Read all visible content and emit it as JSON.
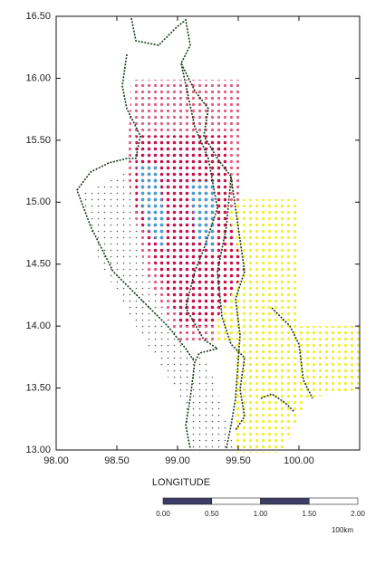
{
  "chart_data": {
    "type": "map",
    "xlabel": "LONGITUDE",
    "xlim": [
      98,
      100.5
    ],
    "ylim": [
      13,
      16.5
    ],
    "xticks": [
      {
        "value": 98,
        "label": "98.00"
      },
      {
        "value": 98.5,
        "label": "98.50"
      },
      {
        "value": 99,
        "label": "99.00"
      },
      {
        "value": 99.5,
        "label": "99.50"
      },
      {
        "value": 100,
        "label": "100.00"
      }
    ],
    "yticks": [
      {
        "value": 13,
        "label": "13.00"
      },
      {
        "value": 13.5,
        "label": "13.50"
      },
      {
        "value": 14,
        "label": "14.00"
      },
      {
        "value": 14.5,
        "label": "14.50"
      },
      {
        "value": 15,
        "label": "15.00"
      },
      {
        "value": 15.5,
        "label": "15.50"
      },
      {
        "value": 16,
        "label": "16.00"
      },
      {
        "value": 16.5,
        "label": "16.50"
      }
    ]
  },
  "scale_bar": {
    "lim": [
      0,
      2
    ],
    "ticks": [
      {
        "value": 0,
        "label": "0.00"
      },
      {
        "value": 0.5,
        "label": "0.50"
      },
      {
        "value": 1,
        "label": "1.00"
      },
      {
        "value": 1.5,
        "label": "1.50"
      },
      {
        "value": 2,
        "label": "2.00"
      }
    ],
    "unit": "100km"
  }
}
